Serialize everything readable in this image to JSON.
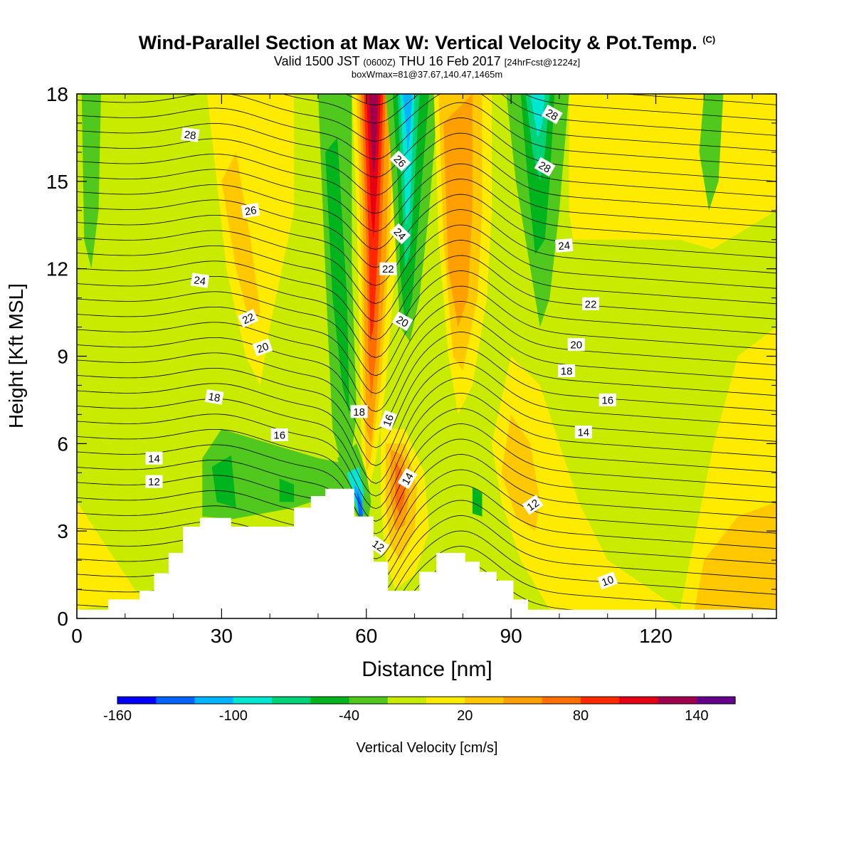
{
  "header": {
    "title": "Wind-Parallel Section at Max W: Vertical Velocity & Pot.Temp.",
    "title_mark": "(C)",
    "valid_prefix": "Valid 1500 JST",
    "valid_zulu": "(0600Z)",
    "valid_date": "THU 16 Feb 2017",
    "forecast": "[24hrFcst@1224z]",
    "box_info": "boxWmax=81@37.67,140.47,1465m"
  },
  "chart_data": {
    "type": "heatmap",
    "xlabel": "Distance [nm]",
    "ylabel": "Height [Kft MSL]",
    "xlim": [
      0,
      145
    ],
    "ylim": [
      0,
      18
    ],
    "x_ticks": [
      0,
      30,
      60,
      90,
      120
    ],
    "y_ticks": [
      0,
      3,
      6,
      9,
      12,
      15,
      18
    ],
    "colorbar": {
      "label": "Vertical Velocity [cm/s]",
      "tick_labels": [
        "-160",
        "-100",
        "-40",
        "20",
        "80",
        "140"
      ],
      "tick_values": [
        -160,
        -100,
        -40,
        20,
        80,
        140
      ],
      "range": [
        -160,
        160
      ],
      "colors": [
        "#0000ff",
        "#0064ff",
        "#00b4ff",
        "#00e6d2",
        "#00d278",
        "#00b41e",
        "#50c81e",
        "#c8eb00",
        "#ffeb00",
        "#ffc800",
        "#ffa000",
        "#ff6e00",
        "#ff2800",
        "#e60014",
        "#a0004b",
        "#64008c"
      ]
    },
    "terrain_kft": [
      [
        0,
        0.3
      ],
      [
        6.5,
        0.3
      ],
      [
        6.5,
        0.65
      ],
      [
        13,
        0.65
      ],
      [
        13,
        0.95
      ],
      [
        16,
        0.95
      ],
      [
        16,
        1.55
      ],
      [
        19,
        1.55
      ],
      [
        19,
        2.25
      ],
      [
        22,
        2.25
      ],
      [
        22,
        3.15
      ],
      [
        25.5,
        3.15
      ],
      [
        25.5,
        3.45
      ],
      [
        32,
        3.45
      ],
      [
        32,
        3.15
      ],
      [
        45,
        3.15
      ],
      [
        45,
        3.8
      ],
      [
        48.5,
        3.8
      ],
      [
        48.5,
        4.2
      ],
      [
        51.5,
        4.2
      ],
      [
        51.5,
        4.45
      ],
      [
        57.5,
        4.45
      ],
      [
        57.5,
        3.5
      ],
      [
        61.5,
        3.5
      ],
      [
        61.5,
        1.95
      ],
      [
        64.5,
        1.95
      ],
      [
        64.5,
        0.95
      ],
      [
        71,
        0.95
      ],
      [
        71,
        1.6
      ],
      [
        74.5,
        1.6
      ],
      [
        74.5,
        2.25
      ],
      [
        80.5,
        2.25
      ],
      [
        80.5,
        1.95
      ],
      [
        83.5,
        1.95
      ],
      [
        83.5,
        1.6
      ],
      [
        87,
        1.6
      ],
      [
        87,
        1.3
      ],
      [
        90.5,
        1.3
      ],
      [
        90.5,
        0.65
      ],
      [
        93.5,
        0.65
      ],
      [
        93.5,
        0.3
      ],
      [
        145,
        0.3
      ]
    ],
    "isentrope_labels": [
      {
        "text": "28",
        "x": 23.5,
        "y": 16.6,
        "angle": 8
      },
      {
        "text": "28",
        "x": 98.5,
        "y": 17.3,
        "angle": 30
      },
      {
        "text": "28",
        "x": 97,
        "y": 15.5,
        "angle": 30
      },
      {
        "text": "26",
        "x": 36,
        "y": 14.0,
        "angle": -10
      },
      {
        "text": "26",
        "x": 67,
        "y": 15.7,
        "angle": 45
      },
      {
        "text": "24",
        "x": 25.5,
        "y": 11.6,
        "angle": 8
      },
      {
        "text": "24",
        "x": 67,
        "y": 13.2,
        "angle": 45
      },
      {
        "text": "24",
        "x": 101,
        "y": 12.8,
        "angle": -5
      },
      {
        "text": "22",
        "x": 35.5,
        "y": 10.3,
        "angle": -25
      },
      {
        "text": "22",
        "x": 64.5,
        "y": 12.0,
        "angle": 0
      },
      {
        "text": "22",
        "x": 106.5,
        "y": 10.8,
        "angle": 0
      },
      {
        "text": "20",
        "x": 38.5,
        "y": 9.3,
        "angle": -20
      },
      {
        "text": "20",
        "x": 67.5,
        "y": 10.2,
        "angle": 30
      },
      {
        "text": "20",
        "x": 103.5,
        "y": 9.4,
        "angle": 0
      },
      {
        "text": "18",
        "x": 28.5,
        "y": 7.6,
        "angle": 10
      },
      {
        "text": "18",
        "x": 58.5,
        "y": 7.1,
        "angle": 0
      },
      {
        "text": "18",
        "x": 101.5,
        "y": 8.5,
        "angle": 0
      },
      {
        "text": "16",
        "x": 42,
        "y": 6.3,
        "angle": 0
      },
      {
        "text": "16",
        "x": 64.5,
        "y": 6.8,
        "angle": -70
      },
      {
        "text": "16",
        "x": 110,
        "y": 7.5,
        "angle": 0
      },
      {
        "text": "14",
        "x": 16,
        "y": 5.5,
        "angle": 0
      },
      {
        "text": "14",
        "x": 68.5,
        "y": 4.8,
        "angle": -60
      },
      {
        "text": "14",
        "x": 105,
        "y": 6.4,
        "angle": 0
      },
      {
        "text": "12",
        "x": 16,
        "y": 4.7,
        "angle": 0
      },
      {
        "text": "12",
        "x": 62.5,
        "y": 2.5,
        "angle": 35
      },
      {
        "text": "12",
        "x": 94.5,
        "y": 3.9,
        "angle": -35
      },
      {
        "text": "10",
        "x": 110,
        "y": 1.3,
        "angle": -20
      }
    ]
  }
}
